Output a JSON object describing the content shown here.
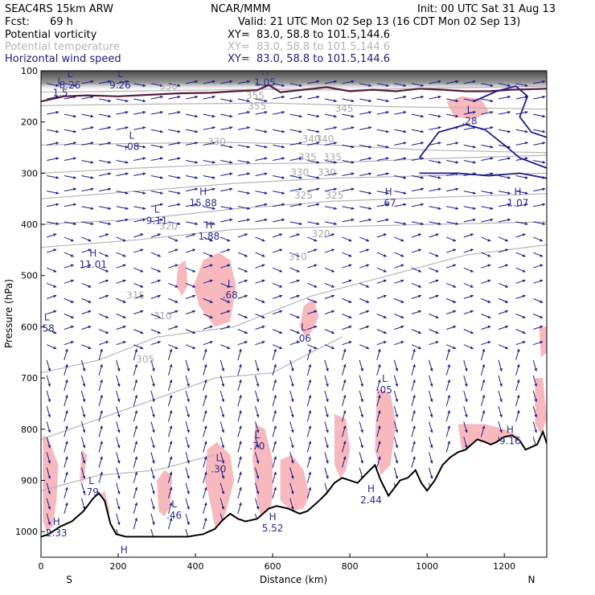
{
  "header": {
    "model": "SEAC4RS 15km ARW",
    "center": "NCAR/MMM",
    "init": "Init: 00 UTC Sat 31 Aug 13",
    "fcst_label": "Fcst:",
    "fcst_value": "69 h",
    "valid": "Valid: 21 UTC Mon 02 Sep 13 (16 CDT Mon 02 Sep 13)"
  },
  "fields": [
    {
      "name": "Potential vorticity",
      "xy": "XY=  83.0, 58.8 to 101.5,144.6",
      "color": "#000000"
    },
    {
      "name": "Potential temperature",
      "xy": "XY=  83.0, 58.8 to 101.5,144.6",
      "color": "#b4b4b4"
    },
    {
      "name": "Horizontal wind speed",
      "xy": "XY=  83.0, 58.8 to 101.5,144.6",
      "color": "#1c1c78"
    }
  ],
  "colors": {
    "wind": "#1c1c8c",
    "pv_shade": "#f7b9bd",
    "theta": "#b4b4b4",
    "pv_contour": "#5a1a3a",
    "terrain": "#000000"
  },
  "chart_data": {
    "type": "cross-section",
    "xlabel": "Distance (km)",
    "ylabel": "Pressure (hPa)",
    "x_range": [
      0,
      1310
    ],
    "y_range": [
      1050,
      100
    ],
    "x_ticks": [
      "0",
      "200",
      "400",
      "600",
      "800",
      "1000",
      "1200"
    ],
    "y_ticks": [
      "100",
      "200",
      "300",
      "400",
      "500",
      "600",
      "700",
      "800",
      "900",
      "1000"
    ],
    "end_labels": {
      "left": "S",
      "right": "N"
    },
    "theta_labels": [
      {
        "text": "330",
        "x": 455,
        "p": 245
      },
      {
        "text": "340",
        "x": 700,
        "p": 240
      },
      {
        "text": "345",
        "x": 785,
        "p": 180
      },
      {
        "text": "350",
        "x": 330,
        "p": 137
      },
      {
        "text": "355",
        "x": 555,
        "p": 155
      },
      {
        "text": "355",
        "x": 560,
        "p": 175
      },
      {
        "text": "340",
        "x": 735,
        "p": 240
      },
      {
        "text": "335",
        "x": 690,
        "p": 275
      },
      {
        "text": "335",
        "x": 755,
        "p": 275
      },
      {
        "text": "330",
        "x": 670,
        "p": 305
      },
      {
        "text": "330",
        "x": 740,
        "p": 305
      },
      {
        "text": "325",
        "x": 680,
        "p": 350
      },
      {
        "text": "325",
        "x": 760,
        "p": 350
      },
      {
        "text": "320",
        "x": 330,
        "p": 410
      },
      {
        "text": "320",
        "x": 725,
        "p": 425
      },
      {
        "text": "315",
        "x": 245,
        "p": 545
      },
      {
        "text": "310",
        "x": 315,
        "p": 585
      },
      {
        "text": "305",
        "x": 270,
        "p": 670
      },
      {
        "text": "310",
        "x": 665,
        "p": 470
      }
    ],
    "extrema": [
      {
        "type": "L",
        "value": "8.26",
        "x": 75,
        "p": 125
      },
      {
        "type": "L",
        "value": "9.26",
        "x": 205,
        "p": 125
      },
      {
        "type": "L",
        "value": "1.5",
        "x": 50,
        "p": 140
      },
      {
        "type": "H",
        "value": "1.05",
        "x": 580,
        "p": 120
      },
      {
        "type": "L",
        "value": ".28",
        "x": 1110,
        "p": 195
      },
      {
        "type": "L",
        "value": ".08",
        "x": 235,
        "p": 245
      },
      {
        "type": "H",
        "value": "15.88",
        "x": 420,
        "p": 355
      },
      {
        "type": "L",
        "value": "9.11",
        "x": 300,
        "p": 390
      },
      {
        "type": "H",
        "value": ".67",
        "x": 900,
        "p": 355
      },
      {
        "type": "H",
        "value": "1.07",
        "x": 1235,
        "p": 355
      },
      {
        "type": "H",
        "value": "1.88",
        "x": 435,
        "p": 420
      },
      {
        "type": "H",
        "value": "11.01",
        "x": 135,
        "p": 475
      },
      {
        "type": "L",
        "value": ".68",
        "x": 490,
        "p": 535
      },
      {
        "type": "L",
        "value": ".58",
        "x": 15,
        "p": 600
      },
      {
        "type": "L",
        "value": ".06",
        "x": 680,
        "p": 620
      },
      {
        "type": "L",
        "value": ".05",
        "x": 890,
        "p": 720
      },
      {
        "type": "H",
        "value": "9.16",
        "x": 1215,
        "p": 820
      },
      {
        "type": "L",
        "value": ".70",
        "x": 560,
        "p": 830
      },
      {
        "type": "L",
        "value": ".30",
        "x": 460,
        "p": 875
      },
      {
        "type": "L",
        "value": ".79",
        "x": 130,
        "p": 920
      },
      {
        "type": "H",
        "value": "2.44",
        "x": 855,
        "p": 935
      },
      {
        "type": "L",
        "value": ".46",
        "x": 345,
        "p": 965
      },
      {
        "type": "H",
        "value": "5.52",
        "x": 600,
        "p": 990
      },
      {
        "type": "H",
        "value": "2.33",
        "x": 40,
        "p": 1000
      },
      {
        "type": "H",
        "value": ".51",
        "x": 215,
        "p": 1055
      }
    ],
    "terrain": [
      [
        0,
        1010
      ],
      [
        20,
        1005
      ],
      [
        50,
        990
      ],
      [
        80,
        980
      ],
      [
        110,
        960
      ],
      [
        135,
        935
      ],
      [
        150,
        925
      ],
      [
        165,
        940
      ],
      [
        180,
        985
      ],
      [
        195,
        1005
      ],
      [
        220,
        1010
      ],
      [
        260,
        1010
      ],
      [
        320,
        1010
      ],
      [
        380,
        1010
      ],
      [
        420,
        1005
      ],
      [
        450,
        995
      ],
      [
        470,
        978
      ],
      [
        490,
        965
      ],
      [
        510,
        975
      ],
      [
        530,
        980
      ],
      [
        560,
        975
      ],
      [
        590,
        955
      ],
      [
        610,
        950
      ],
      [
        640,
        955
      ],
      [
        670,
        965
      ],
      [
        690,
        960
      ],
      [
        720,
        940
      ],
      [
        740,
        925
      ],
      [
        760,
        905
      ],
      [
        780,
        895
      ],
      [
        800,
        900
      ],
      [
        820,
        905
      ],
      [
        845,
        885
      ],
      [
        865,
        870
      ],
      [
        880,
        900
      ],
      [
        900,
        930
      ],
      [
        915,
        915
      ],
      [
        930,
        900
      ],
      [
        950,
        895
      ],
      [
        970,
        880
      ],
      [
        985,
        905
      ],
      [
        1000,
        920
      ],
      [
        1020,
        900
      ],
      [
        1040,
        870
      ],
      [
        1060,
        855
      ],
      [
        1080,
        845
      ],
      [
        1100,
        840
      ],
      [
        1115,
        830
      ],
      [
        1130,
        820
      ],
      [
        1150,
        825
      ],
      [
        1165,
        830
      ],
      [
        1180,
        825
      ],
      [
        1200,
        815
      ],
      [
        1220,
        812
      ],
      [
        1240,
        822
      ],
      [
        1255,
        840
      ],
      [
        1270,
        835
      ],
      [
        1285,
        830
      ],
      [
        1300,
        805
      ],
      [
        1310,
        828
      ]
    ],
    "tropopause": [
      [
        0,
        160
      ],
      [
        60,
        150
      ],
      [
        120,
        148
      ],
      [
        200,
        150
      ],
      [
        280,
        147
      ],
      [
        360,
        144
      ],
      [
        440,
        143
      ],
      [
        500,
        140
      ],
      [
        560,
        138
      ],
      [
        590,
        128
      ],
      [
        620,
        142
      ],
      [
        680,
        137
      ],
      [
        740,
        132
      ],
      [
        800,
        140
      ],
      [
        860,
        137
      ],
      [
        920,
        140
      ],
      [
        980,
        135
      ],
      [
        1040,
        137
      ],
      [
        1100,
        140
      ],
      [
        1160,
        140
      ],
      [
        1220,
        137
      ],
      [
        1310,
        135
      ]
    ],
    "theta_lines": [
      {
        "value": 350,
        "pts": [
          [
            0,
            142
          ],
          [
            200,
            140
          ],
          [
            400,
            138
          ],
          [
            600,
            136
          ],
          [
            800,
            138
          ],
          [
            1000,
            134
          ],
          [
            1310,
            130
          ]
        ]
      },
      {
        "value": 345,
        "pts": [
          [
            0,
            168
          ],
          [
            300,
            165
          ],
          [
            600,
            163
          ],
          [
            900,
            170
          ],
          [
            1310,
            175
          ]
        ]
      },
      {
        "value": 340,
        "pts": [
          [
            0,
            245
          ],
          [
            250,
            242
          ],
          [
            500,
            240
          ],
          [
            750,
            245
          ],
          [
            1000,
            255
          ],
          [
            1310,
            260
          ]
        ]
      },
      {
        "value": 335,
        "pts": [
          [
            0,
            300
          ],
          [
            250,
            290
          ],
          [
            500,
            282
          ],
          [
            750,
            280
          ],
          [
            1000,
            272
          ],
          [
            1310,
            265
          ]
        ]
      },
      {
        "value": 330,
        "pts": [
          [
            0,
            350
          ],
          [
            250,
            335
          ],
          [
            500,
            320
          ],
          [
            750,
            310
          ],
          [
            1000,
            305
          ],
          [
            1310,
            300
          ]
        ]
      },
      {
        "value": 325,
        "pts": [
          [
            0,
            400
          ],
          [
            250,
            390
          ],
          [
            500,
            370
          ],
          [
            750,
            355
          ],
          [
            1000,
            348
          ],
          [
            1310,
            340
          ]
        ]
      },
      {
        "value": 320,
        "pts": [
          [
            0,
            445
          ],
          [
            250,
            430
          ],
          [
            500,
            410
          ],
          [
            750,
            405
          ],
          [
            1000,
            400
          ],
          [
            1310,
            395
          ]
        ]
      },
      {
        "value": 315,
        "pts": [
          [
            0,
            690
          ],
          [
            150,
            665
          ],
          [
            300,
            620
          ],
          [
            500,
            600
          ],
          [
            700,
            540
          ],
          [
            900,
            500
          ],
          [
            1100,
            460
          ],
          [
            1310,
            440
          ]
        ]
      },
      {
        "value": 310,
        "pts": [
          [
            0,
            820
          ],
          [
            150,
            780
          ],
          [
            300,
            740
          ],
          [
            450,
            700
          ],
          [
            600,
            690
          ],
          [
            700,
            650
          ],
          [
            780,
            620
          ]
        ]
      },
      {
        "value": 305,
        "pts": [
          [
            0,
            920
          ],
          [
            150,
            890
          ],
          [
            300,
            880
          ],
          [
            450,
            850
          ]
        ]
      }
    ]
  }
}
